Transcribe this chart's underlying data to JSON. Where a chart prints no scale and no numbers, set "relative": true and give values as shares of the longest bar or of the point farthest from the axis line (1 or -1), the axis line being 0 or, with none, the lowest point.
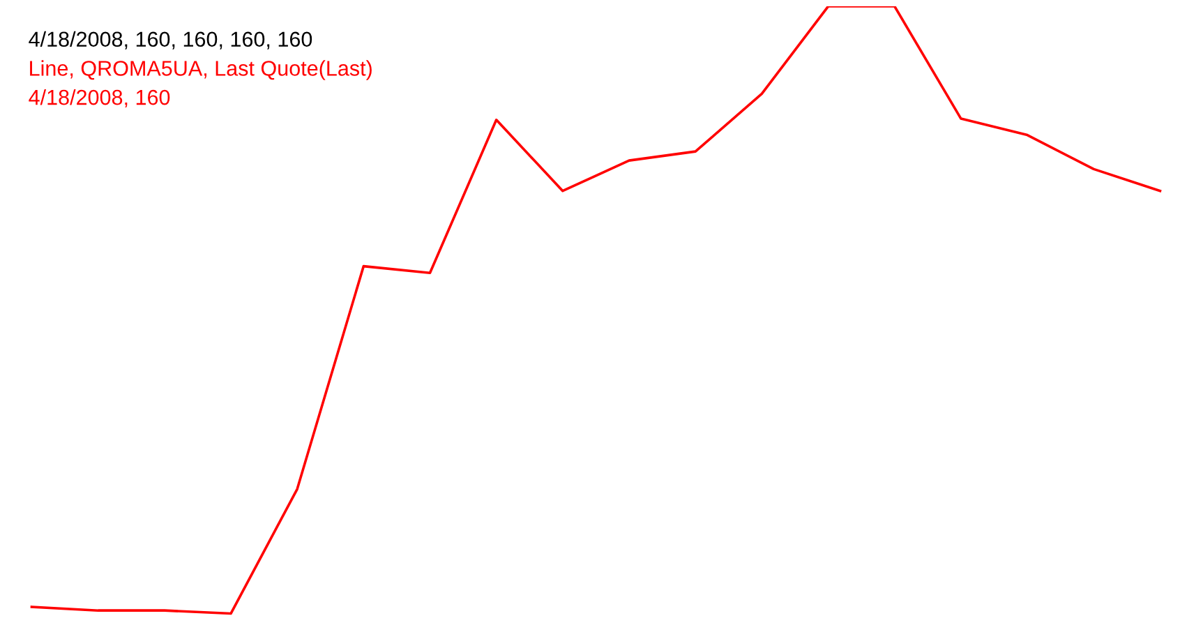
{
  "chart_data": {
    "type": "line",
    "relative": true,
    "annotations": [
      "4/18/2008, 160, 160, 160, 160",
      "Line, QROMA5UA, Last Quote(Last)",
      "4/18/2008, 160"
    ],
    "categories": [
      null,
      null,
      null,
      null,
      null,
      null,
      null,
      null,
      null,
      null,
      null,
      null,
      null,
      null,
      null,
      null,
      null,
      null
    ],
    "series": [
      {
        "color": "#ff0000",
        "values": [
          0.011,
          0.005,
          0.005,
          0,
          0.205,
          0.572,
          0.561,
          0.813,
          0.696,
          0.746,
          0.761,
          0.856,
          1,
          1,
          0.815,
          0.788,
          0.732,
          0.696
        ]
      }
    ],
    "grid": false,
    "legend": false,
    "marker": "none",
    "line_style": "solid"
  }
}
